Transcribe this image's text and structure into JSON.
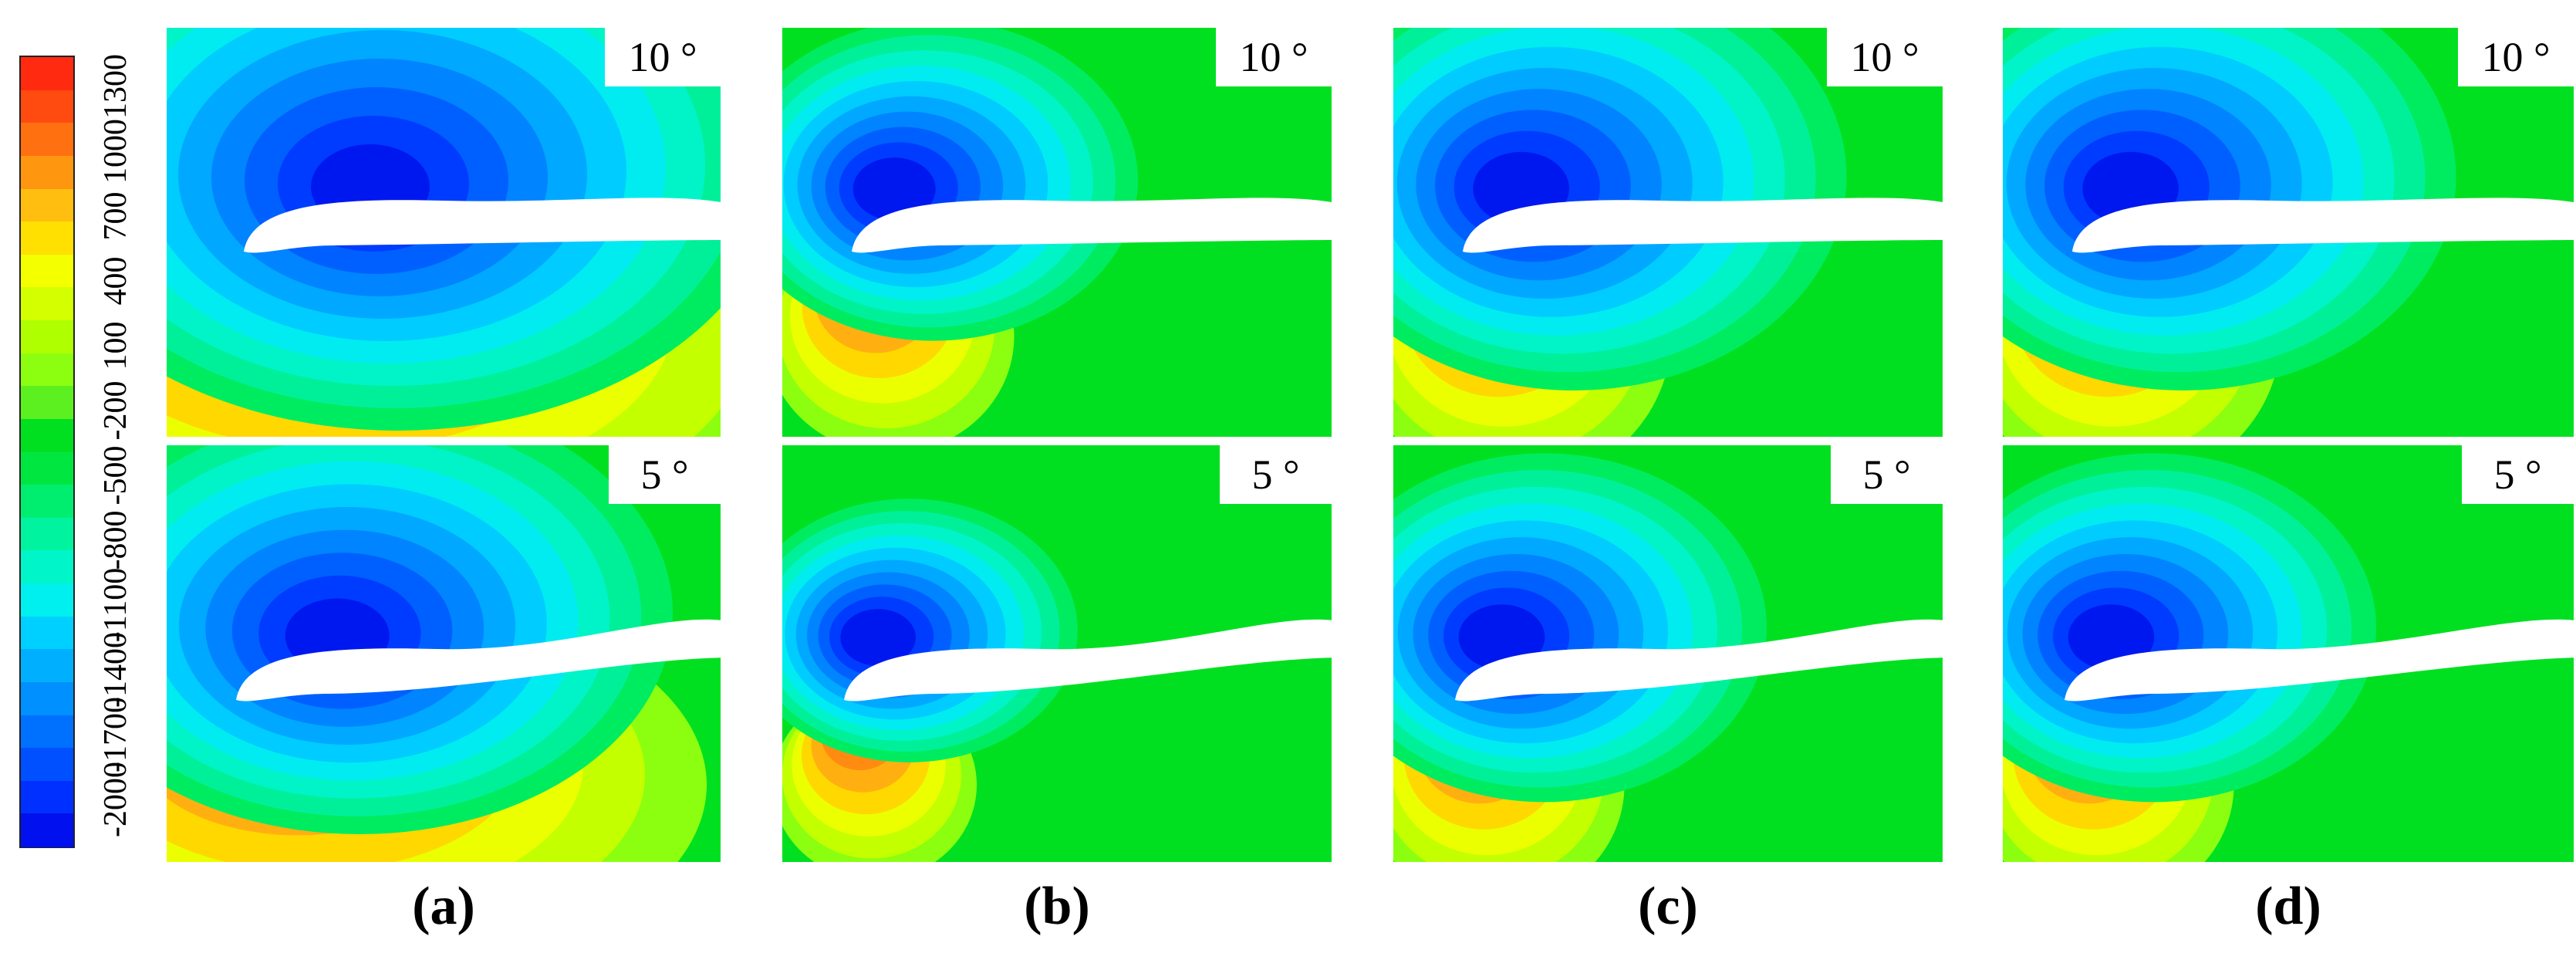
{
  "colorbar": {
    "ticks": [
      "1300",
      "1000",
      "700",
      "400",
      "100",
      "-200",
      "-500",
      "-800",
      "-1100",
      "-1400",
      "-1700",
      "-2000"
    ],
    "colors": [
      "#ff2a10",
      "#ff4a10",
      "#ff7010",
      "#ff9610",
      "#ffbe10",
      "#ffe000",
      "#f4ff00",
      "#d4ff00",
      "#b0ff00",
      "#8cff10",
      "#5cf020",
      "#00e020",
      "#00e640",
      "#00ee70",
      "#00f4a0",
      "#00f6c8",
      "#00f0f0",
      "#00d0ff",
      "#00b0ff",
      "#0090ff",
      "#0070ff",
      "#0050ff",
      "#0030ff",
      "#0010ee"
    ]
  },
  "panels": [
    {
      "id": "a",
      "caption": "(a)",
      "top_label": "10 °",
      "bottom_label": "5 °"
    },
    {
      "id": "b",
      "caption": "(b)",
      "top_label": "10 °",
      "bottom_label": "5 °"
    },
    {
      "id": "c",
      "caption": "(c)",
      "top_label": "10 °",
      "bottom_label": "5 °"
    },
    {
      "id": "d",
      "caption": "(d)",
      "top_label": "10 °",
      "bottom_label": "5 °"
    }
  ]
}
